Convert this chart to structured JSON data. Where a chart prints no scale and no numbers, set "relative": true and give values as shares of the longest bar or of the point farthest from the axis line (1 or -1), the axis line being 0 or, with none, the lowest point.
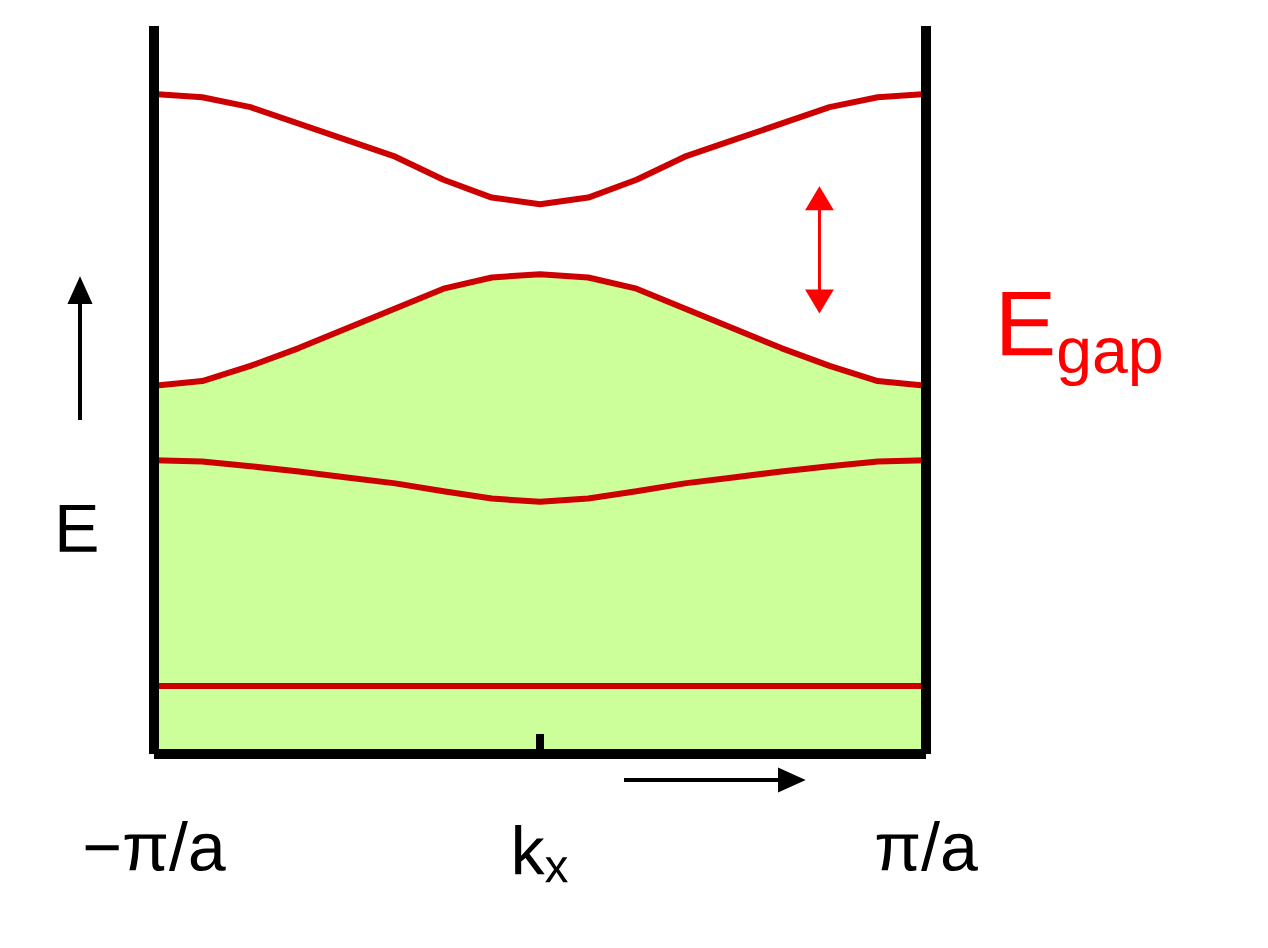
{
  "chart_data": {
    "type": "line",
    "relative": true,
    "xlabel": "k$_{x}$",
    "ylabel": "E",
    "categories": [
      null,
      null,
      null,
      null,
      null,
      null,
      null,
      null,
      null,
      null,
      null,
      null,
      null,
      null,
      null,
      null,
      null
    ],
    "marker": "none",
    "line_style": "solid",
    "annotations": [
      "E$_{gap}$",
      "−π/a",
      "π/a"
    ],
    "series": [
      {
        "type": "area",
        "color": "#ccff99",
        "values": [
          0.558,
          0.565,
          0.588,
          0.615,
          0.645,
          0.675,
          0.705,
          0.722,
          0.727,
          0.722,
          0.705,
          0.675,
          0.645,
          0.615,
          0.588,
          0.565,
          0.558
        ]
      },
      {
        "color": "#cc0000",
        "values": [
          1,
          0.995,
          0.98,
          0.955,
          0.93,
          0.905,
          0.87,
          0.843,
          0.833,
          0.843,
          0.87,
          0.905,
          0.93,
          0.955,
          0.98,
          0.995,
          1
        ]
      },
      {
        "color": "#cc0000",
        "values": [
          0.558,
          0.565,
          0.588,
          0.615,
          0.645,
          0.675,
          0.705,
          0.722,
          0.727,
          0.722,
          0.705,
          0.675,
          0.645,
          0.615,
          0.588,
          0.565,
          0.558
        ]
      },
      {
        "color": "#cc0000",
        "values": [
          0.445,
          0.443,
          0.436,
          0.428,
          0.419,
          0.41,
          0.398,
          0.387,
          0.382,
          0.387,
          0.398,
          0.41,
          0.419,
          0.428,
          0.436,
          0.443,
          0.445
        ]
      },
      {
        "color": "#cc0000",
        "values": [
          0.103,
          0.103,
          0.103,
          0.103,
          0.103,
          0.103,
          0.103,
          0.103,
          0.103,
          0.103,
          0.103,
          0.103,
          0.103,
          0.103,
          0.103,
          0.103,
          0.103
        ]
      }
    ]
  }
}
